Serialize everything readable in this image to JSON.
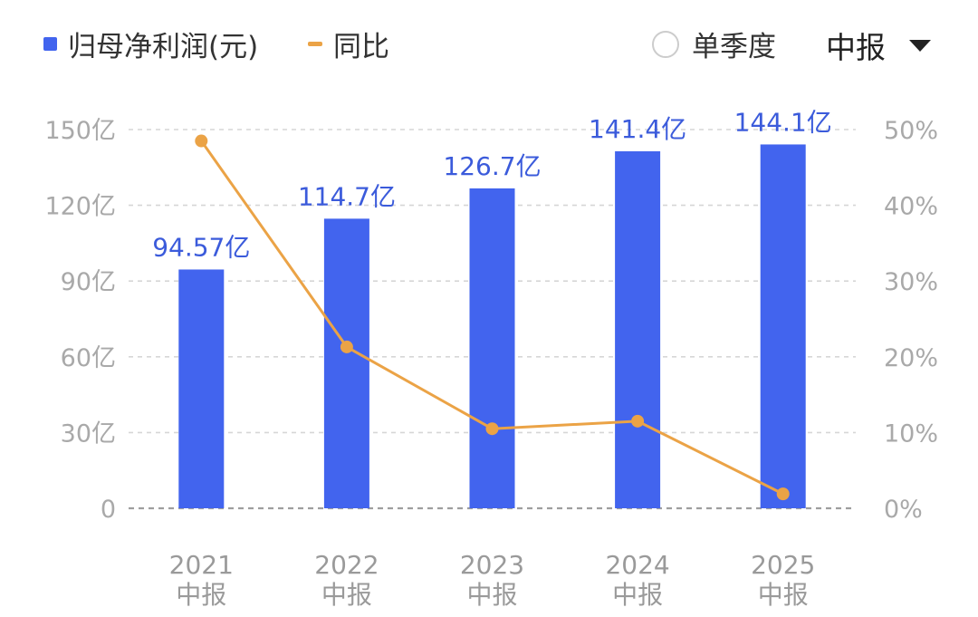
{
  "legend": {
    "bar_label": "归母净利润(元)",
    "line_label": "同比"
  },
  "controls": {
    "single_quarter_label": "单季度",
    "period_label": "中报"
  },
  "colors": {
    "bar": "#4264ee",
    "line": "#eba346",
    "grid": "#d6d6d6",
    "baseline": "#9e9e9e",
    "data_label": "#3b5bdb",
    "tick": "#a9a9a9"
  },
  "chart_data": {
    "type": "bar",
    "categories": [
      "2021\n中报",
      "2022\n中报",
      "2023\n中报",
      "2024\n中报",
      "2025\n中报"
    ],
    "series": [
      {
        "name": "归母净利润(元)",
        "type": "bar",
        "axis": "left",
        "values": [
          94.57,
          114.7,
          126.7,
          141.4,
          144.1
        ],
        "data_labels": [
          "94.57亿",
          "114.7亿",
          "126.7亿",
          "141.4亿",
          "144.1亿"
        ]
      },
      {
        "name": "同比",
        "type": "line",
        "axis": "right",
        "values": [
          48.5,
          21.3,
          10.5,
          11.5,
          1.9
        ]
      }
    ],
    "y_left": {
      "ylim": [
        0,
        150
      ],
      "ticks": [
        0,
        30,
        60,
        90,
        120,
        150
      ],
      "tick_labels": [
        "0",
        "30亿",
        "60亿",
        "90亿",
        "120亿",
        "150亿"
      ]
    },
    "y_right": {
      "ylim": [
        0,
        50
      ],
      "ticks": [
        0,
        10,
        20,
        30,
        40,
        50
      ],
      "tick_labels": [
        "0%",
        "10%",
        "20%",
        "30%",
        "40%",
        "50%"
      ]
    },
    "grid": true,
    "legend_position": "top-left"
  }
}
